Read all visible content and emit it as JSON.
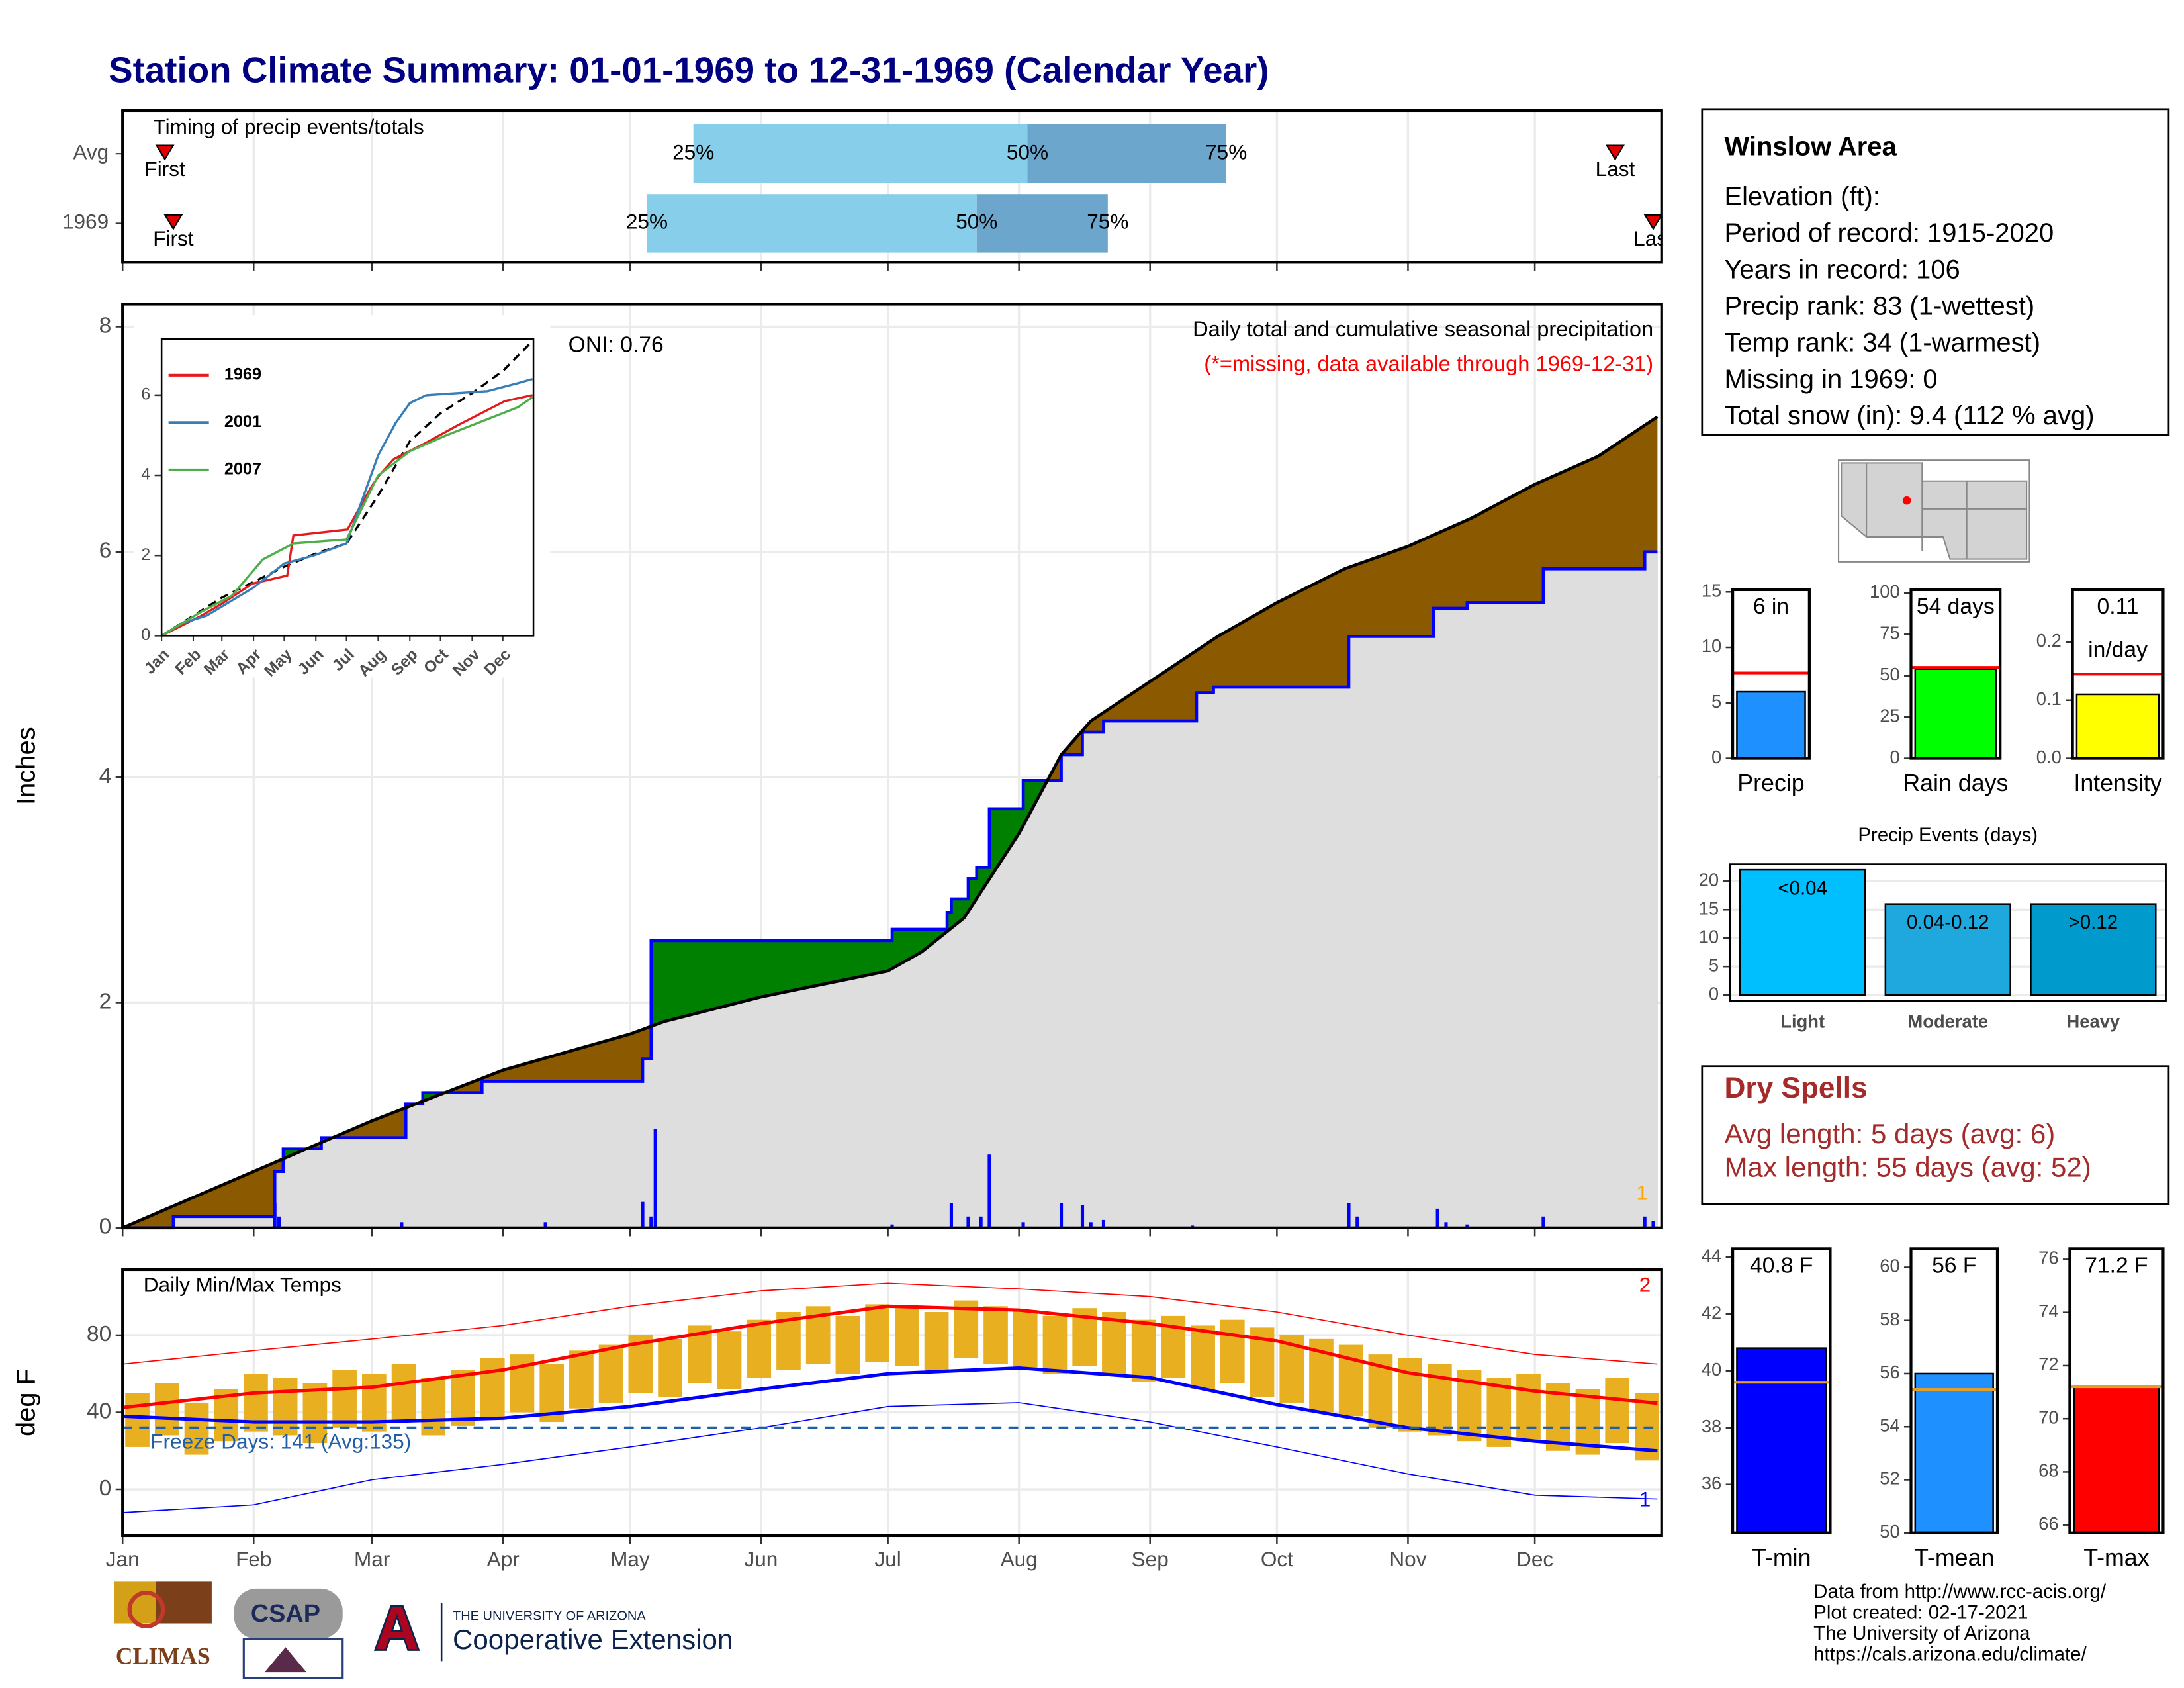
{
  "title": "Station Climate Summary: 01-01-1969 to 12-31-1969 (Calendar Year)",
  "chart_data": [
    {
      "type": "timing",
      "title": "Timing of precip events/totals",
      "categories": [
        "Avg",
        "1969"
      ],
      "first": [
        11,
        13
      ],
      "last": [
        354,
        363
      ],
      "first_label": "First",
      "last_label": "Last",
      "p25": [
        136,
        125
      ],
      "p50": [
        215,
        203
      ],
      "p75": [
        262,
        234
      ],
      "percent_labels": [
        "25%",
        "50%",
        "75%"
      ],
      "colors": [
        "#87ceeb",
        "#6ca6cd"
      ],
      "marker_color": "#e00000",
      "xlim": [
        1,
        365
      ],
      "xticks": [
        1,
        32,
        60,
        91,
        121,
        152,
        182,
        213,
        244,
        274,
        305,
        335
      ]
    },
    {
      "type": "area",
      "ylabel": "Inches",
      "oni": "ONI: 0.76",
      "subtitle": "Daily total and cumulative seasonal precipitation",
      "note": "(*=missing, data available through 1969-12-31)",
      "note_color": "#ff0000",
      "corner_label": "1",
      "corner_color": "#ffa500",
      "xlim": [
        1,
        365
      ],
      "xticks": [
        1,
        32,
        60,
        91,
        121,
        152,
        182,
        213,
        244,
        274,
        305,
        335
      ],
      "ylim": [
        0,
        8.2
      ],
      "yticks": [
        0,
        2,
        4,
        6,
        8
      ],
      "grid": true,
      "above_color": "#008000",
      "below_color": "#8b5a00",
      "base_color": "#dedede",
      "series": [
        {
          "color": "#0000ff",
          "x": [
            1,
            13,
            13,
            37,
            37,
            39,
            39,
            48,
            48,
            68,
            68,
            72,
            72,
            86,
            86,
            124,
            124,
            126,
            126,
            183,
            183,
            196,
            196,
            197,
            197,
            201,
            201,
            203,
            203,
            206,
            206,
            214,
            214,
            223,
            223,
            228,
            228,
            233,
            233,
            255,
            255,
            259,
            259,
            291,
            291,
            311,
            311,
            319,
            319,
            337,
            337,
            361,
            361,
            364
          ],
          "values": [
            0,
            0,
            0.1,
            0.1,
            0.5,
            0.5,
            0.7,
            0.7,
            0.8,
            0.8,
            1.1,
            1.1,
            1.2,
            1.2,
            1.3,
            1.3,
            1.5,
            1.5,
            2.55,
            2.55,
            2.65,
            2.65,
            2.8,
            2.8,
            2.92,
            2.92,
            3.1,
            3.1,
            3.2,
            3.2,
            3.72,
            3.72,
            3.97,
            3.97,
            4.2,
            4.2,
            4.4,
            4.4,
            4.5,
            4.5,
            4.75,
            4.75,
            4.8,
            4.8,
            5.25,
            5.25,
            5.5,
            5.5,
            5.55,
            5.55,
            5.85,
            5.85,
            6.0,
            6.0
          ]
        },
        {
          "color": "#000000",
          "x": [
            1,
            32,
            60,
            91,
            121,
            129,
            152,
            182,
            190,
            200,
            213,
            223,
            230,
            244,
            260,
            274,
            290,
            305,
            320,
            335,
            350,
            364
          ],
          "values": [
            0,
            0.5,
            0.95,
            1.4,
            1.72,
            1.83,
            2.05,
            2.28,
            2.45,
            2.75,
            3.5,
            4.2,
            4.5,
            4.85,
            5.25,
            5.55,
            5.85,
            6.05,
            6.3,
            6.6,
            6.85,
            7.2
          ]
        }
      ],
      "bars": {
        "color": "#0000ff",
        "x": [
          37,
          38,
          67,
          101,
          124,
          126,
          127,
          183,
          197,
          201,
          204,
          206,
          214,
          223,
          228,
          230,
          233,
          254,
          291,
          293,
          312,
          314,
          319,
          337,
          361,
          363
        ],
        "values": [
          0.22,
          0.1,
          0.05,
          0.05,
          0.23,
          0.1,
          0.88,
          0.03,
          0.22,
          0.1,
          0.1,
          0.65,
          0.05,
          0.22,
          0.2,
          0.05,
          0.07,
          0.02,
          0.22,
          0.1,
          0.17,
          0.05,
          0.03,
          0.1,
          0.1,
          0.06
        ]
      }
    },
    {
      "type": "line",
      "xlim": [
        1,
        365
      ],
      "xticks": [
        {
          "value": 1,
          "label": "Jan"
        },
        {
          "value": 32,
          "label": "Feb"
        },
        {
          "value": 60,
          "label": "Mar"
        },
        {
          "value": 91,
          "label": "Apr"
        },
        {
          "value": 121,
          "label": "May"
        },
        {
          "value": 152,
          "label": "Jun"
        },
        {
          "value": 182,
          "label": "Jul"
        },
        {
          "value": 213,
          "label": "Aug"
        },
        {
          "value": 244,
          "label": "Sep"
        },
        {
          "value": 274,
          "label": "Oct"
        },
        {
          "value": 305,
          "label": "Nov"
        },
        {
          "value": 335,
          "label": "Dec"
        }
      ],
      "ylim": [
        0,
        7.4
      ],
      "yticks": [
        0,
        2,
        4,
        6
      ],
      "series": [
        {
          "name": "1969",
          "color": "#e41a1c",
          "x": [
            1,
            40,
            60,
            90,
            124,
            130,
            183,
            206,
            214,
            228,
            259,
            291,
            337,
            364
          ],
          "values": [
            0,
            0.5,
            0.8,
            1.3,
            1.5,
            2.5,
            2.65,
            3.7,
            4.0,
            4.4,
            4.8,
            5.25,
            5.85,
            6.0
          ]
        },
        {
          "name": "2001",
          "color": "#377eb8",
          "x": [
            1,
            20,
            45,
            91,
            121,
            150,
            182,
            213,
            230,
            244,
            260,
            320,
            350,
            364
          ],
          "values": [
            0,
            0.3,
            0.5,
            1.2,
            1.8,
            2.0,
            2.3,
            4.5,
            5.3,
            5.8,
            6.0,
            6.1,
            6.3,
            6.4
          ]
        },
        {
          "name": "2007",
          "color": "#4daf4a",
          "x": [
            1,
            40,
            70,
            100,
            130,
            182,
            213,
            244,
            280,
            320,
            350,
            364
          ],
          "values": [
            0,
            0.6,
            1.0,
            1.9,
            2.3,
            2.4,
            4.0,
            4.6,
            5.0,
            5.4,
            5.7,
            5.95
          ]
        }
      ],
      "average": {
        "color": "#000000",
        "x": [
          1,
          60,
          121,
          152,
          182,
          213,
          244,
          274,
          305,
          335,
          364
        ],
        "values": [
          0,
          0.95,
          1.72,
          2.05,
          2.3,
          3.5,
          4.85,
          5.55,
          6.05,
          6.6,
          7.35
        ]
      }
    },
    {
      "type": "gauge",
      "label": "Precip",
      "values": [
        6
      ],
      "value_labels": [
        "6 in"
      ],
      "avg": 7.7,
      "color": "#1e90ff",
      "avg_color": "#ff0000",
      "ylim": [
        0,
        15.2
      ],
      "yticks": [
        0,
        5,
        10,
        15
      ]
    },
    {
      "type": "gauge",
      "label": "Rain days",
      "values": [
        54
      ],
      "value_labels": [
        "54 days"
      ],
      "avg": 55,
      "color": "#00ff00",
      "avg_color": "#ff0000",
      "ylim": [
        0,
        102
      ],
      "yticks": [
        0,
        25,
        50,
        75,
        100
      ]
    },
    {
      "type": "gauge",
      "label": "Intensity",
      "values": [
        0.11
      ],
      "value_labels": [
        "0.11"
      ],
      "unit": "in/day",
      "avg": 0.145,
      "color": "#ffff00",
      "avg_color": "#ff0000",
      "ylim": [
        0,
        0.29
      ],
      "yticks": [
        {
          "value": 0,
          "label": "0.0"
        },
        0.1,
        0.2
      ]
    },
    {
      "type": "bar",
      "title": "Precip Events (days)",
      "categories": [
        "Light",
        "Moderate",
        "Heavy"
      ],
      "labels": [
        "<0.04",
        "0.04-0.12",
        ">0.12"
      ],
      "values": [
        22,
        16,
        16
      ],
      "colors": [
        "#00bfff",
        "#1ea8dd",
        "#009acd"
      ],
      "ylim": [
        -1,
        23
      ],
      "yticks": [
        0,
        5,
        10,
        15,
        20
      ],
      "grid": true
    },
    {
      "type": "range",
      "title": "Daily Min/Max Temps",
      "ylabel": "deg F",
      "freeze_temp": 32,
      "freeze_label": "Freeze Days: 141 (Avg:135)",
      "freeze_color": "#1f5fa8",
      "high_records": 2,
      "low_records": 1,
      "xlim": [
        1,
        365
      ],
      "xticks": [
        {
          "value": 1,
          "label": "Jan"
        },
        {
          "value": 32,
          "label": "Feb"
        },
        {
          "value": 60,
          "label": "Mar"
        },
        {
          "value": 91,
          "label": "Apr"
        },
        {
          "value": 121,
          "label": "May"
        },
        {
          "value": 152,
          "label": "Jun"
        },
        {
          "value": 182,
          "label": "Jul"
        },
        {
          "value": 213,
          "label": "Aug"
        },
        {
          "value": 244,
          "label": "Sep"
        },
        {
          "value": 274,
          "label": "Oct"
        },
        {
          "value": 305,
          "label": "Nov"
        },
        {
          "value": 335,
          "label": "Dec"
        }
      ],
      "ylim": [
        -24,
        114
      ],
      "yticks": [
        0,
        40,
        80
      ],
      "grid": true,
      "daily": {
        "color": "#e8b020",
        "x": [
          1,
          8,
          15,
          22,
          29,
          36,
          43,
          50,
          57,
          64,
          71,
          78,
          85,
          92,
          99,
          106,
          113,
          120,
          127,
          134,
          141,
          148,
          155,
          162,
          169,
          176,
          183,
          190,
          197,
          204,
          211,
          218,
          225,
          232,
          239,
          246,
          253,
          260,
          267,
          274,
          281,
          288,
          295,
          302,
          309,
          316,
          323,
          330,
          337,
          344,
          351,
          358
        ],
        "high": [
          50,
          55,
          45,
          52,
          60,
          58,
          55,
          62,
          60,
          65,
          58,
          62,
          68,
          70,
          65,
          72,
          75,
          80,
          78,
          85,
          82,
          88,
          92,
          95,
          90,
          96,
          94,
          92,
          98,
          95,
          93,
          90,
          94,
          92,
          88,
          90,
          85,
          88,
          84,
          80,
          78,
          75,
          70,
          68,
          65,
          62,
          58,
          60,
          55,
          52,
          58,
          50
        ],
        "low": [
          22,
          28,
          18,
          25,
          30,
          28,
          24,
          32,
          30,
          35,
          28,
          33,
          36,
          40,
          35,
          42,
          45,
          50,
          48,
          55,
          52,
          58,
          62,
          65,
          60,
          66,
          64,
          62,
          68,
          65,
          62,
          60,
          64,
          60,
          56,
          58,
          52,
          55,
          48,
          45,
          40,
          38,
          32,
          30,
          28,
          25,
          22,
          25,
          20,
          18,
          24,
          15
        ]
      },
      "x": [
        1,
        32,
        60,
        91,
        121,
        152,
        182,
        213,
        244,
        274,
        305,
        335,
        364
      ],
      "lines": [
        {
          "color": "#ff0000",
          "thin": true,
          "values": [
            65,
            72,
            78,
            85,
            95,
            103,
            107,
            104,
            100,
            92,
            80,
            70,
            65
          ]
        },
        {
          "color": "#0000ff",
          "thin": true,
          "values": [
            -12,
            -8,
            5,
            13,
            22,
            32,
            43,
            45,
            35,
            22,
            8,
            -3,
            -5
          ]
        },
        {
          "color": "#ff0000",
          "thin": false,
          "values": [
            42.5,
            50,
            53,
            62,
            75,
            86,
            95,
            93,
            86,
            77,
            60.5,
            51,
            44.7
          ]
        },
        {
          "color": "#0000ff",
          "thin": false,
          "values": [
            38,
            35,
            35,
            37,
            43,
            52,
            60,
            63,
            58,
            44,
            32,
            25,
            20
          ]
        }
      ]
    },
    {
      "type": "gauge",
      "label": "T-min",
      "values": [
        40.8
      ],
      "value_labels": [
        "40.8 F"
      ],
      "avg": 39.6,
      "color": "#0000ff",
      "avg_color": "#e0a030",
      "ylim": [
        34.3,
        44.3
      ],
      "yticks": [
        36,
        38,
        40,
        42,
        44
      ]
    },
    {
      "type": "gauge",
      "label": "T-mean",
      "values": [
        56
      ],
      "value_labels": [
        "56 F"
      ],
      "avg": 55.4,
      "color": "#1e90ff",
      "avg_color": "#e0a030",
      "ylim": [
        50,
        60.7
      ],
      "yticks": [
        50,
        52,
        54,
        56,
        58,
        60
      ]
    },
    {
      "type": "gauge",
      "label": "T-max",
      "values": [
        71.2
      ],
      "value_labels": [
        "71.2 F"
      ],
      "avg": 71.2,
      "color": "#ff0000",
      "avg_color": "#e0a030",
      "ylim": [
        65.7,
        76.4
      ],
      "yticks": [
        66,
        68,
        70,
        72,
        74,
        76
      ]
    }
  ],
  "station": {
    "name": "Winslow Area",
    "lines": [
      "Elevation (ft):",
      "Period of record: 1915-2020",
      "Years in record: 106",
      "Precip rank: 83 (1-wettest)",
      "Temp rank: 34 (1-warmest)",
      "Missing in 1969: 0",
      "Total snow (in): 9.4 (112 % avg)"
    ]
  },
  "dry_spells": {
    "title": "Dry Spells",
    "lines": [
      "Avg length: 5 days (avg: 6)",
      "Max length: 55 days (avg: 52)"
    ]
  },
  "footer": {
    "lines": [
      "Data from http://www.rcc-acis.org/",
      "Plot created: 02-17-2021",
      "The University of Arizona",
      "https://cals.arizona.edu/climate/"
    ]
  },
  "logos": {
    "climas": "CLIMAS",
    "csap": "CSAP",
    "ua_mark": "A",
    "ua_name": "THE UNIVERSITY OF ARIZONA",
    "ua_unit": "Cooperative Extension"
  }
}
